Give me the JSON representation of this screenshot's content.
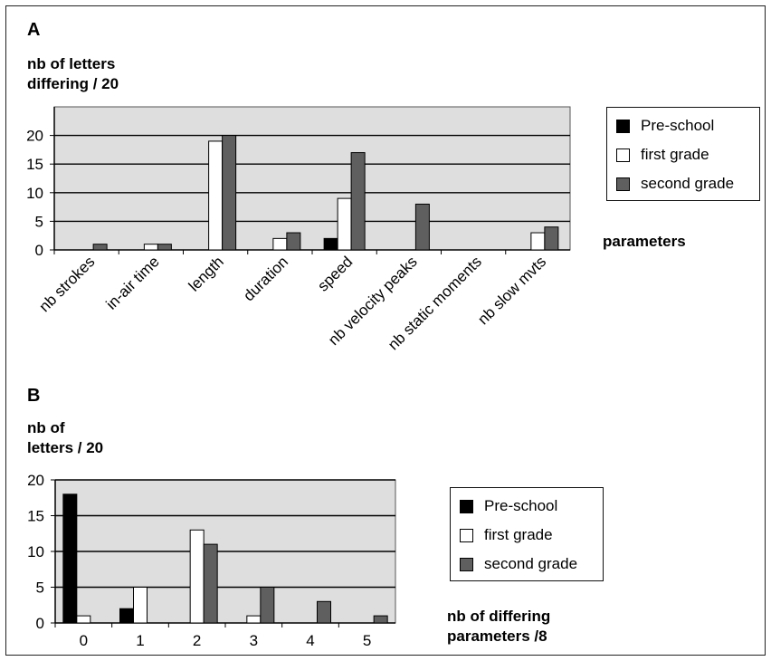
{
  "colors": {
    "preschool": "#000000",
    "first": "#ffffff",
    "second": "#5f5f5f",
    "plot_bg": "#dedede",
    "grid": "#000000"
  },
  "panel_a": {
    "letter": "A",
    "ylabel_line1": "nb of letters",
    "ylabel_line2": "differing / 20",
    "xlabel": "parameters"
  },
  "panel_b": {
    "letter": "B",
    "ylabel_line1": "nb of",
    "ylabel_line2": "letters / 20",
    "xlabel_line1": "nb of differing",
    "xlabel_line2": "parameters /8"
  },
  "legend": [
    "Pre-school",
    "first grade",
    "second grade"
  ],
  "chart_data": [
    {
      "type": "bar",
      "panel": "A",
      "categories": [
        "nb strokes",
        "in-air time",
        "length",
        "duration",
        "speed",
        "nb velocity peaks",
        "nb static moments",
        "nb slow mvts"
      ],
      "series": [
        {
          "name": "Pre-school",
          "values": [
            0,
            0,
            0,
            0,
            2,
            0,
            0,
            0
          ]
        },
        {
          "name": "first grade",
          "values": [
            0,
            1,
            19,
            2,
            9,
            0,
            0,
            3
          ]
        },
        {
          "name": "second grade",
          "values": [
            1,
            1,
            20,
            3,
            17,
            8,
            0,
            4
          ]
        }
      ],
      "ylim": [
        0,
        25
      ],
      "yticks": [
        0,
        5,
        10,
        15,
        20
      ],
      "grid": true,
      "legend_position": "right"
    },
    {
      "type": "bar",
      "panel": "B",
      "categories": [
        "0",
        "1",
        "2",
        "3",
        "4",
        "5"
      ],
      "series": [
        {
          "name": "Pre-school",
          "values": [
            18,
            2,
            0,
            0,
            0,
            0
          ]
        },
        {
          "name": "first grade",
          "values": [
            1,
            5,
            13,
            1,
            0,
            0
          ]
        },
        {
          "name": "second grade",
          "values": [
            0,
            0,
            11,
            5,
            3,
            1
          ]
        }
      ],
      "ylim": [
        0,
        20
      ],
      "yticks": [
        0,
        5,
        10,
        15,
        20
      ],
      "grid": true,
      "legend_position": "right"
    }
  ]
}
